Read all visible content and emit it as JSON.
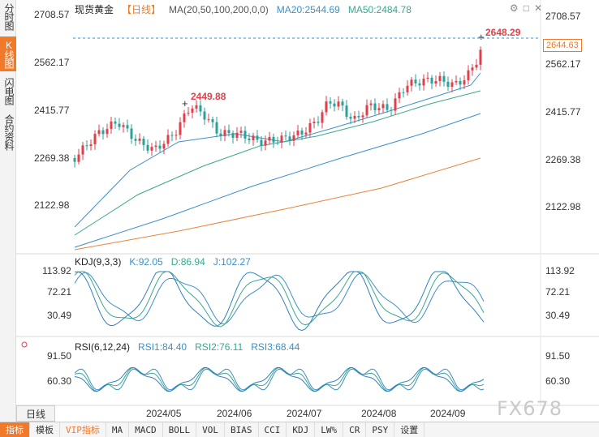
{
  "sidebar": {
    "tabs": [
      {
        "label": "分时图",
        "active": false
      },
      {
        "label": "K线图",
        "active": true
      },
      {
        "label": "闪电图",
        "active": false
      },
      {
        "label": "合约资料",
        "active": false
      }
    ],
    "period_button": "日线"
  },
  "header": {
    "title": "现货黄金",
    "period": "【日线】",
    "ma_label": "MA(20,50,100,200,0,0)",
    "ma20": "MA20:2544.69",
    "ma50": "MA50:2484.78"
  },
  "price_axis": {
    "ticks": [
      "2708.57",
      "2562.17",
      "2415.77",
      "2269.38",
      "2122.98"
    ],
    "current_price": "2644.63",
    "high_label": "2648.29",
    "marked_high": "2449.88"
  },
  "kdj": {
    "label": "KDJ(9,3,3)",
    "k": "K:92.05",
    "d": "D:86.94",
    "j": "J:102.27",
    "ticks": [
      "113.92",
      "72.21",
      "30.49"
    ]
  },
  "rsi": {
    "label": "RSI(6,12,24)",
    "rsi1": "RSI1:84.40",
    "rsi2": "RSI2:76.11",
    "rsi3": "RSI3:68.44",
    "ticks": [
      "91.50",
      "60.30"
    ]
  },
  "x_axis": {
    "labels": [
      "2024/05",
      "2024/06",
      "2024/07",
      "2024/08",
      "2024/09"
    ]
  },
  "bottom_bar": {
    "items": [
      {
        "label": "指标",
        "active": true,
        "vip": false
      },
      {
        "label": "模板",
        "active": false,
        "vip": false
      },
      {
        "label": "VIP指标",
        "active": false,
        "vip": true
      },
      {
        "label": "MA",
        "active": false,
        "vip": false
      },
      {
        "label": "MACD",
        "active": false,
        "vip": false
      },
      {
        "label": "BOLL",
        "active": false,
        "vip": false
      },
      {
        "label": "VOL",
        "active": false,
        "vip": false
      },
      {
        "label": "BIAS",
        "active": false,
        "vip": false
      },
      {
        "label": "CCI",
        "active": false,
        "vip": false
      },
      {
        "label": "KDJ",
        "active": false,
        "vip": false
      },
      {
        "label": "LW%",
        "active": false,
        "vip": false
      },
      {
        "label": "CR",
        "active": false,
        "vip": false
      },
      {
        "label": "PSY",
        "active": false,
        "vip": false
      },
      {
        "label": "设置",
        "active": false,
        "vip": false
      }
    ]
  },
  "watermark": "FX678",
  "colors": {
    "up": "#e0404a",
    "down": "#2aa19a",
    "accent": "#f07a2a",
    "ma20": "#3c8fc8",
    "ma50": "#39a88d",
    "ma200": "#e8843a"
  },
  "chart_data": {
    "type": "candlestick",
    "title": "现货黄金",
    "y_axis_ticks": [
      2708.57,
      2562.17,
      2415.77,
      2269.38,
      2122.98
    ],
    "x_axis_labels": [
      "2024/05",
      "2024/06",
      "2024/07",
      "2024/08",
      "2024/09"
    ],
    "annotations": [
      {
        "label": "2449.88"
      },
      {
        "label": "2648.29"
      }
    ],
    "last_price": 2644.63,
    "ma20_last": 2544.69,
    "ma50_last": 2484.78
  }
}
